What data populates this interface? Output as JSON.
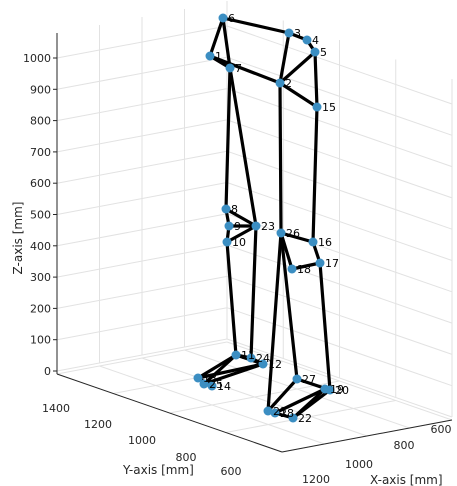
{
  "chart_data": {
    "type": "scatter",
    "title": "",
    "xlabel": "X-axis [mm]",
    "ylabel": "Y-axis [mm]",
    "zlabel": "Z-axis [mm]",
    "x_ticks": [
      "600",
      "800",
      "1000",
      "1200"
    ],
    "y_ticks": [
      "600",
      "800",
      "1000",
      "1200",
      "1400"
    ],
    "z_ticks": [
      "0",
      "100",
      "200",
      "300",
      "400",
      "500",
      "600",
      "700",
      "800",
      "900",
      "1000"
    ],
    "grid": true,
    "projection": "3d",
    "colors": {
      "marker": "#3b8ec2",
      "link": "#000000",
      "grid": "#e2e2e2",
      "axis": "#262626"
    },
    "points": [
      {
        "label": "1",
        "z": 1010
      },
      {
        "label": "2",
        "z": 900
      },
      {
        "label": "3",
        "z": 1050
      },
      {
        "label": "4",
        "z": 1030
      },
      {
        "label": "5",
        "z": 1000
      },
      {
        "label": "6",
        "z": 1120
      },
      {
        "label": "7",
        "z": 950
      },
      {
        "label": "8",
        "z": 510
      },
      {
        "label": "9",
        "z": 470
      },
      {
        "label": "10",
        "z": 430
      },
      {
        "label": "11",
        "z": 40
      },
      {
        "label": "12",
        "z": 20
      },
      {
        "label": "13",
        "z": -30
      },
      {
        "label": "14",
        "z": -40
      },
      {
        "label": "15",
        "z": 850
      },
      {
        "label": "16",
        "z": 420
      },
      {
        "label": "17",
        "z": 330
      },
      {
        "label": "18",
        "z": 310
      },
      {
        "label": "19",
        "z": -30
      },
      {
        "label": "20",
        "z": -50
      },
      {
        "label": "21",
        "z": -130
      },
      {
        "label": "22",
        "z": -160
      },
      {
        "label": "23",
        "z": 450
      },
      {
        "label": "24",
        "z": 30
      },
      {
        "label": "25",
        "z": -40
      },
      {
        "label": "26",
        "z": 430
      },
      {
        "label": "27",
        "z": -30
      },
      {
        "label": "28",
        "z": -140
      }
    ],
    "links": [
      [
        "6",
        "3"
      ],
      [
        "6",
        "1"
      ],
      [
        "6",
        "7"
      ],
      [
        "3",
        "4"
      ],
      [
        "4",
        "5"
      ],
      [
        "5",
        "2"
      ],
      [
        "5",
        "15"
      ],
      [
        "3",
        "2"
      ],
      [
        "1",
        "2"
      ],
      [
        "1",
        "7"
      ],
      [
        "2",
        "15"
      ],
      [
        "7",
        "8"
      ],
      [
        "7",
        "23"
      ],
      [
        "8",
        "23"
      ],
      [
        "9",
        "23"
      ],
      [
        "10",
        "23"
      ],
      [
        "8",
        "9"
      ],
      [
        "9",
        "10"
      ],
      [
        "10",
        "11"
      ],
      [
        "23",
        "24"
      ],
      [
        "11",
        "24"
      ],
      [
        "24",
        "12"
      ],
      [
        "11",
        "12"
      ],
      [
        "12",
        "13"
      ],
      [
        "13",
        "14"
      ],
      [
        "11",
        "13"
      ],
      [
        "12",
        "25"
      ],
      [
        "25",
        "14"
      ],
      [
        "11",
        "25"
      ],
      [
        "15",
        "16"
      ],
      [
        "26",
        "16"
      ],
      [
        "26",
        "18"
      ],
      [
        "16",
        "17"
      ],
      [
        "18",
        "17"
      ],
      [
        "2",
        "26"
      ],
      [
        "26",
        "27"
      ],
      [
        "17",
        "20"
      ],
      [
        "27",
        "20"
      ],
      [
        "27",
        "21"
      ],
      [
        "20",
        "19"
      ],
      [
        "19",
        "22"
      ],
      [
        "21",
        "28"
      ],
      [
        "28",
        "22"
      ],
      [
        "19",
        "28"
      ],
      [
        "26",
        "21"
      ],
      [
        "20",
        "22"
      ]
    ]
  }
}
